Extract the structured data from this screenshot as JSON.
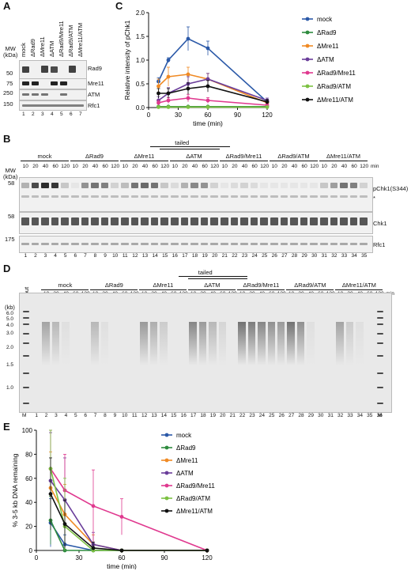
{
  "panelA": {
    "letter": "A",
    "lanes": [
      "mock",
      "ΔRad9",
      "ΔMre11",
      "ΔATM",
      "ΔRad9/Mre11",
      "ΔRad9/ATM",
      "ΔMre11/ATM"
    ],
    "mw_header": "MW",
    "mw_unit": "(kDa)",
    "mw_marks": [
      "50",
      "75",
      "250",
      "150"
    ],
    "blots": [
      "Rad9",
      "Mre11",
      "ATM",
      "Rfc1"
    ],
    "lane_numbers": [
      "1",
      "2",
      "3",
      "4",
      "5",
      "6",
      "7"
    ]
  },
  "panelB": {
    "letter": "B",
    "groups": [
      "mock",
      "ΔRad9",
      "ΔMre11",
      "ΔATM",
      "ΔRad9/Mre11",
      "ΔRad9/ATM",
      "ΔMre11/ATM"
    ],
    "tailed": "tailed",
    "timepoints": [
      "10",
      "20",
      "40",
      "60",
      "120"
    ],
    "min_label": "min",
    "mw_header": "MW",
    "mw_unit": "(kDa)",
    "blots": [
      {
        "label": "pChk1(S344)",
        "mw": "58"
      },
      {
        "label": "Chk1",
        "mw": "58"
      },
      {
        "label": "Rfc1",
        "mw": "175"
      }
    ],
    "asterisk": "*",
    "lane_numbers": [
      "1",
      "2",
      "3",
      "4",
      "5",
      "6",
      "7",
      "8",
      "9",
      "10",
      "11",
      "12",
      "13",
      "14",
      "15",
      "16",
      "17",
      "18",
      "19",
      "20",
      "21",
      "22",
      "23",
      "24",
      "25",
      "26",
      "27",
      "28",
      "29",
      "30",
      "31",
      "32",
      "33",
      "34",
      "35"
    ]
  },
  "panelC": {
    "letter": "C",
    "chart_data": {
      "type": "line",
      "x": [
        10,
        20,
        40,
        60,
        120
      ],
      "xlabel": "time (min)",
      "ylabel": "Relative intensity of pChk1",
      "xlim": [
        0,
        120
      ],
      "ylim": [
        0,
        2.0
      ],
      "xticks": [
        "0",
        "30",
        "60",
        "90",
        "120"
      ],
      "yticks": [
        "0.0",
        "0.5",
        "1.0",
        "1.5",
        "2.0"
      ],
      "legend_position": "right",
      "series": [
        {
          "name": "mock",
          "color": "#2b59a8",
          "values": [
            0.55,
            1.0,
            1.45,
            1.25,
            0.12
          ],
          "err": [
            0.08,
            0.05,
            0.25,
            0.15,
            0.05
          ]
        },
        {
          "name": "ΔRad9",
          "color": "#2e8b3e",
          "values": [
            0.02,
            0.02,
            0.02,
            0.02,
            0.02
          ],
          "err": [
            0.01,
            0.01,
            0.01,
            0.01,
            0.01
          ]
        },
        {
          "name": "ΔMre11",
          "color": "#f08a24",
          "values": [
            0.45,
            0.65,
            0.7,
            0.6,
            0.1
          ],
          "err": [
            0.15,
            0.2,
            0.15,
            0.12,
            0.05
          ]
        },
        {
          "name": "ΔATM",
          "color": "#6a3d9a",
          "values": [
            0.15,
            0.3,
            0.5,
            0.6,
            0.15
          ],
          "err": [
            0.08,
            0.12,
            0.15,
            0.12,
            0.05
          ]
        },
        {
          "name": "ΔRad9/Mre11",
          "color": "#e0398f",
          "values": [
            0.1,
            0.15,
            0.2,
            0.15,
            0.05
          ],
          "err": [
            0.05,
            0.06,
            0.08,
            0.06,
            0.03
          ]
        },
        {
          "name": "ΔRad9/ATM",
          "color": "#7cc142",
          "values": [
            0.01,
            0.01,
            0.01,
            0.01,
            0.01
          ],
          "err": [
            0.01,
            0.01,
            0.01,
            0.01,
            0.01
          ]
        },
        {
          "name": "ΔMre11/ATM",
          "color": "#111111",
          "values": [
            0.3,
            0.3,
            0.4,
            0.45,
            0.12
          ],
          "err": [
            0.1,
            0.1,
            0.12,
            0.12,
            0.05
          ]
        }
      ]
    }
  },
  "panelD": {
    "letter": "D",
    "groups": [
      "mock",
      "ΔRad9",
      "ΔMre11",
      "ΔATM",
      "ΔRad9/Mre11",
      "ΔRad9/ATM",
      "ΔMre11/ATM"
    ],
    "tailed": "tailed",
    "input": "input",
    "timepoints": [
      "10",
      "20",
      "40",
      "60",
      "120"
    ],
    "min_label": "min",
    "kb_unit": "(kb)",
    "kb_marks": [
      "6.0",
      "5.0",
      "4.0",
      "3.0",
      "2.0",
      "1.5",
      "1.0"
    ],
    "marker_label": "M",
    "lane_numbers": [
      "1",
      "2",
      "3",
      "4",
      "5",
      "6",
      "7",
      "8",
      "9",
      "10",
      "11",
      "12",
      "13",
      "14",
      "15",
      "16",
      "17",
      "18",
      "19",
      "20",
      "21",
      "22",
      "23",
      "24",
      "25",
      "26",
      "27",
      "28",
      "29",
      "30",
      "31",
      "32",
      "33",
      "34",
      "35",
      "36"
    ]
  },
  "panelE": {
    "letter": "E",
    "chart_data": {
      "type": "line",
      "x": [
        10,
        20,
        40,
        60,
        120
      ],
      "xlabel": "time (min)",
      "ylabel": "% 3-5 kb DNA remaining",
      "xlim": [
        0,
        120
      ],
      "ylim": [
        0,
        100
      ],
      "xticks": [
        "0",
        "30",
        "60",
        "90",
        "120"
      ],
      "yticks": [
        "0",
        "20",
        "40",
        "60",
        "80",
        "100"
      ],
      "legend_position": "top-right",
      "series": [
        {
          "name": "mock",
          "color": "#2b59a8",
          "values": [
            23,
            5,
            0,
            0,
            0
          ],
          "err": [
            20,
            8,
            1,
            0,
            0
          ]
        },
        {
          "name": "ΔRad9",
          "color": "#2e8b3e",
          "values": [
            25,
            0,
            0,
            0,
            0
          ],
          "err": [
            20,
            1,
            0,
            0,
            0
          ]
        },
        {
          "name": "ΔMre11",
          "color": "#f08a24",
          "values": [
            52,
            30,
            5,
            0,
            0
          ],
          "err": [
            30,
            25,
            8,
            0,
            0
          ]
        },
        {
          "name": "ΔATM",
          "color": "#6a3d9a",
          "values": [
            58,
            42,
            5,
            0,
            0
          ],
          "err": [
            40,
            35,
            10,
            0,
            0
          ]
        },
        {
          "name": "ΔRad9/Mre11",
          "color": "#e0398f",
          "values": [
            68,
            50,
            37,
            28,
            0
          ],
          "err": [
            50,
            30,
            30,
            15,
            0
          ]
        },
        {
          "name": "ΔRad9/ATM",
          "color": "#7cc142",
          "values": [
            68,
            20,
            0,
            0,
            0
          ],
          "err": [
            50,
            40,
            1,
            0,
            0
          ]
        },
        {
          "name": "ΔMre11/ATM",
          "color": "#111111",
          "values": [
            47,
            22,
            2,
            0,
            0
          ],
          "err": [
            30,
            20,
            5,
            0,
            0
          ]
        }
      ]
    }
  }
}
